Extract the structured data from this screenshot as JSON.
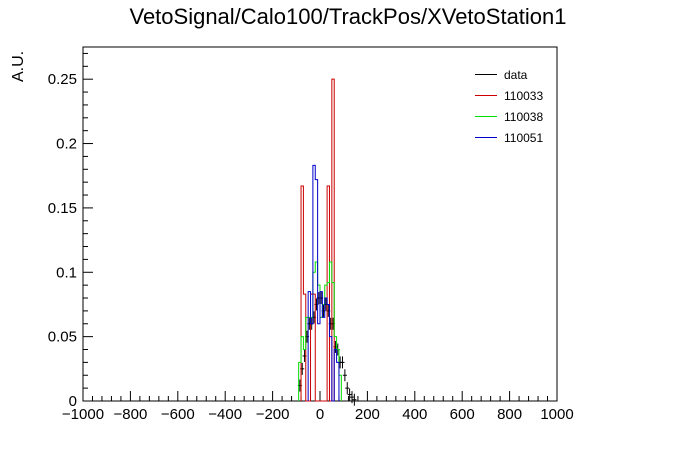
{
  "title": "VetoSignal/Calo100/TrackPos/XVetoStation1",
  "chart_data": {
    "type": "histogram",
    "ylabel": "A.U.",
    "xlabel": "",
    "xlim": [
      -1000,
      1000
    ],
    "ylim": [
      0,
      0.275
    ],
    "bin_width": 10,
    "x_ticks": [
      -1000,
      -800,
      -600,
      -400,
      -200,
      0,
      200,
      400,
      600,
      800,
      1000
    ],
    "x_tick_labels": [
      "−1000",
      "−800",
      "−600",
      "−400",
      "−200",
      "0",
      "200",
      "400",
      "600",
      "800",
      "1000"
    ],
    "y_ticks": [
      0,
      0.05,
      0.1,
      0.15,
      0.2,
      0.25
    ],
    "y_tick_labels": [
      "0",
      "0.05",
      "0.1",
      "0.15",
      "0.2",
      "0.25"
    ],
    "grid": false,
    "legend_position": "top-right",
    "series": [
      {
        "name": "data",
        "color": "#000000",
        "style": "points",
        "bins": [
          [
            -90,
            0.012
          ],
          [
            -80,
            0.025
          ],
          [
            -70,
            0.035
          ],
          [
            -60,
            0.05
          ],
          [
            -50,
            0.06
          ],
          [
            -40,
            0.06
          ],
          [
            -30,
            0.065
          ],
          [
            -20,
            0.075
          ],
          [
            -10,
            0.08
          ],
          [
            0,
            0.08
          ],
          [
            10,
            0.07
          ],
          [
            20,
            0.075
          ],
          [
            30,
            0.07
          ],
          [
            40,
            0.06
          ],
          [
            50,
            0.06
          ],
          [
            60,
            0.042
          ],
          [
            70,
            0.04
          ],
          [
            80,
            0.03
          ],
          [
            90,
            0.03
          ],
          [
            100,
            0.02
          ],
          [
            110,
            0.01
          ],
          [
            120,
            0.005
          ],
          [
            130,
            0.003
          ],
          [
            140,
            0.001
          ]
        ]
      },
      {
        "name": "110033",
        "color": "#cc0000",
        "style": "step",
        "bins": [
          [
            -80,
            0.167
          ],
          [
            -70,
            0.083
          ],
          [
            -40,
            0.083
          ],
          [
            -30,
            0.083
          ],
          [
            30,
            0.167
          ],
          [
            50,
            0.25
          ]
        ]
      },
      {
        "name": "110038",
        "color": "#00dd00",
        "style": "step",
        "bins": [
          [
            -90,
            0.03
          ],
          [
            -80,
            0.05
          ],
          [
            -70,
            0.04
          ],
          [
            -60,
            0.065
          ],
          [
            -50,
            0.065
          ],
          [
            -40,
            0.065
          ],
          [
            -30,
            0.1
          ],
          [
            -20,
            0.108
          ],
          [
            -10,
            0.09
          ],
          [
            0,
            0.065
          ],
          [
            10,
            0.075
          ],
          [
            20,
            0.09
          ],
          [
            30,
            0.092
          ],
          [
            40,
            0.108
          ],
          [
            50,
            0.092
          ],
          [
            60,
            0.05
          ],
          [
            70,
            0.04
          ],
          [
            80,
            0.02
          ]
        ]
      },
      {
        "name": "110051",
        "color": "#0000cc",
        "style": "step",
        "bins": [
          [
            -50,
            0.085
          ],
          [
            -40,
            0.06
          ],
          [
            -30,
            0.183
          ],
          [
            -20,
            0.172
          ],
          [
            -10,
            0.06
          ],
          [
            0,
            0.085
          ],
          [
            10,
            0.065
          ],
          [
            20,
            0.08
          ],
          [
            30,
            0.075
          ],
          [
            40,
            0.05
          ],
          [
            60,
            0.04
          ],
          [
            70,
            0.03
          ]
        ]
      }
    ]
  }
}
